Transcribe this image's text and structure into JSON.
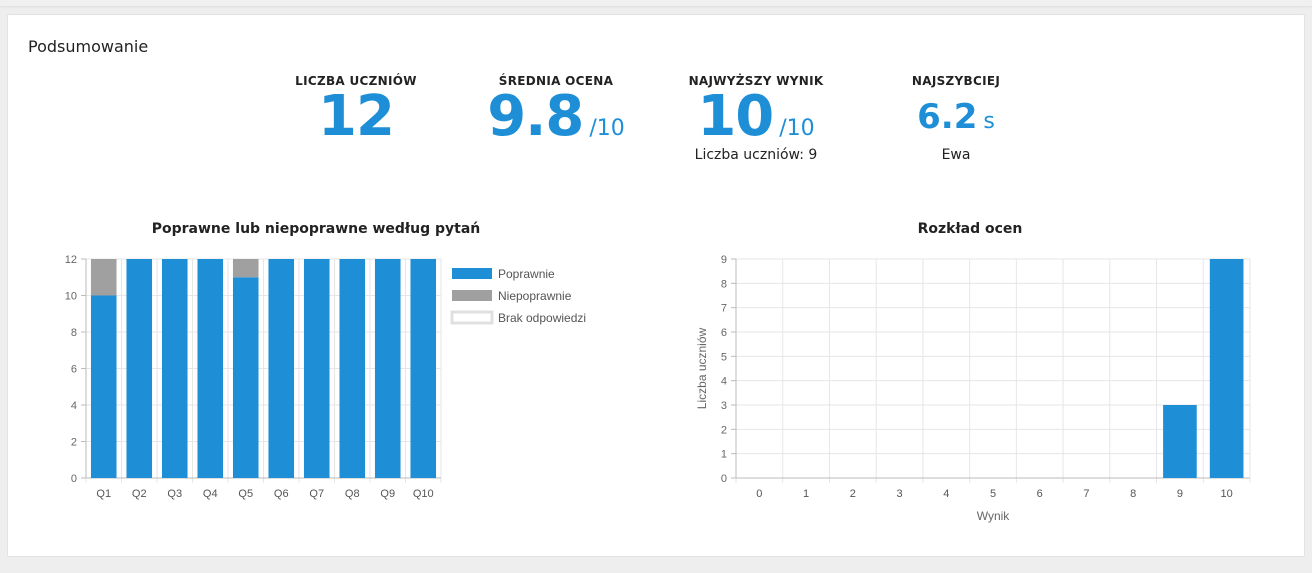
{
  "summary": {
    "title": "Podsumowanie",
    "stats": [
      {
        "label": "LICZBA UCZNIÓW",
        "value": "12",
        "suffix": "",
        "sub": ""
      },
      {
        "label": "ŚREDNIA OCENA",
        "value": "9.8",
        "suffix": "/10",
        "sub": ""
      },
      {
        "label": "NAJWYŻSZY WYNIK",
        "value": "10",
        "suffix": "/10",
        "sub": "Liczba uczniów: 9"
      },
      {
        "label": "NAJSZYBCIEJ",
        "value": "6.2",
        "suffix": "s",
        "sub": "Ewa"
      }
    ]
  },
  "colors": {
    "accent": "#1e8fd6",
    "correct": "#1e8fd6",
    "incorrect": "#a0a0a0",
    "no_answer": "#ffffff"
  },
  "chart_data": [
    {
      "type": "bar",
      "stacked": true,
      "title": "Poprawne lub niepoprawne według pytań",
      "categories": [
        "Q1",
        "Q2",
        "Q3",
        "Q4",
        "Q5",
        "Q6",
        "Q7",
        "Q8",
        "Q9",
        "Q10"
      ],
      "series": [
        {
          "name": "Poprawnie",
          "color": "#1e8fd6",
          "values": [
            10,
            12,
            12,
            12,
            11,
            12,
            12,
            12,
            12,
            12
          ]
        },
        {
          "name": "Niepoprawnie",
          "color": "#a0a0a0",
          "values": [
            2,
            0,
            0,
            0,
            1,
            0,
            0,
            0,
            0,
            0
          ]
        },
        {
          "name": "Brak odpowiedzi",
          "color": "#ffffff",
          "values": [
            0,
            0,
            0,
            0,
            0,
            0,
            0,
            0,
            0,
            0
          ]
        }
      ],
      "ylim": [
        0,
        12
      ],
      "yticks": [
        "0",
        "2",
        "4",
        "6",
        "8",
        "10",
        "12"
      ],
      "legend": "right",
      "grid": true
    },
    {
      "type": "bar",
      "title": "Rozkład ocen",
      "categories": [
        "0",
        "1",
        "2",
        "3",
        "4",
        "5",
        "6",
        "7",
        "8",
        "9",
        "10"
      ],
      "values": [
        0,
        0,
        0,
        0,
        0,
        0,
        0,
        0,
        0,
        3,
        9
      ],
      "xlabel": "Wynik",
      "ylabel": "Liczba uczniów",
      "ylim": [
        0,
        9
      ],
      "yticks": [
        "0",
        "1",
        "2",
        "3",
        "4",
        "5",
        "6",
        "7",
        "8",
        "9"
      ],
      "grid": true
    }
  ]
}
